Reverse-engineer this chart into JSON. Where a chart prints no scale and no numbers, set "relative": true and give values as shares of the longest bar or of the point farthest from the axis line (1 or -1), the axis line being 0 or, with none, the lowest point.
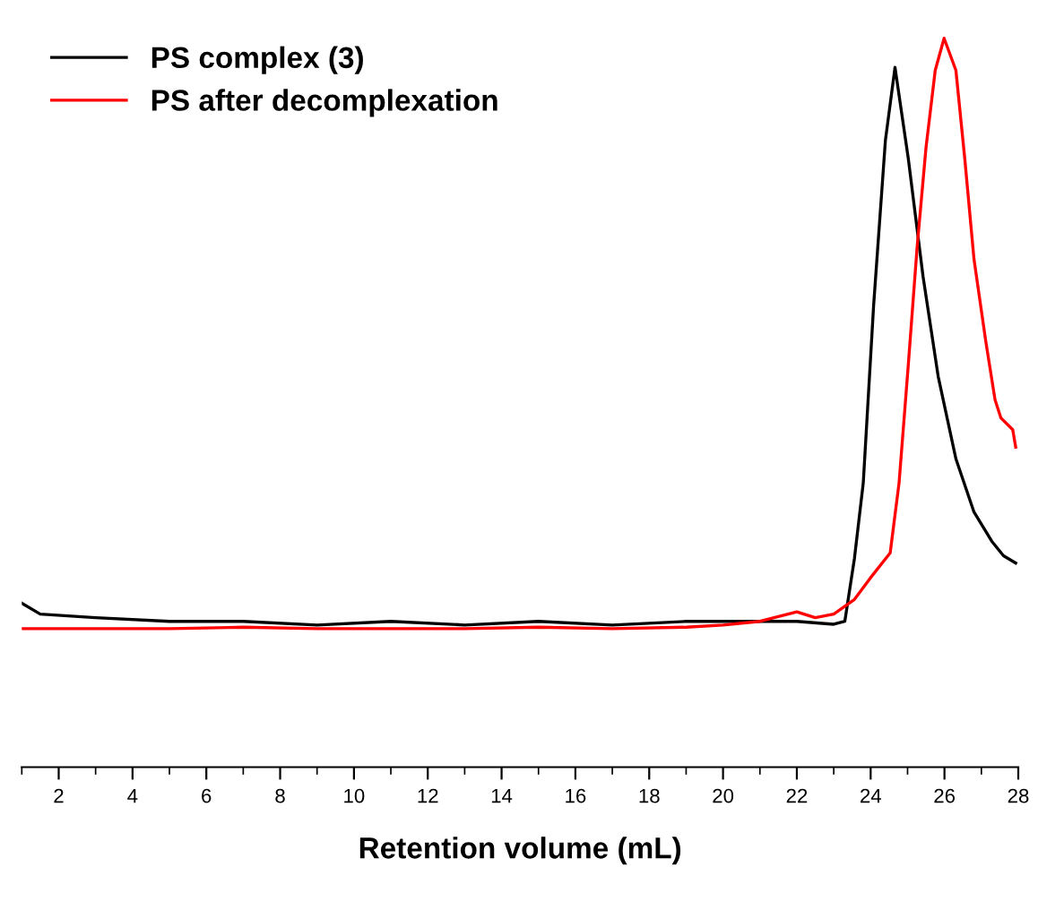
{
  "chart_data": {
    "type": "line",
    "relative": true,
    "xlabel": "Retention volume (mL)",
    "xlim": [
      1,
      28
    ],
    "xticks": [
      2,
      4,
      6,
      8,
      10,
      12,
      14,
      16,
      18,
      20,
      22,
      24,
      26,
      28
    ],
    "tick_labels": "x",
    "grid": false,
    "legend": "top left",
    "marker": "none",
    "line_style": "solid",
    "series": [
      {
        "name": "PS complex (3)",
        "color": "#000000",
        "x": [
          1,
          1.5,
          3,
          5,
          7,
          9,
          11,
          13,
          15,
          17,
          19,
          21,
          22,
          23,
          23.3,
          23.56,
          23.8,
          24.08,
          24.4,
          24.66,
          25.02,
          25.42,
          25.83,
          26.31,
          26.8,
          27.28,
          27.6,
          27.93
        ],
        "values": [
          0.225,
          0.21,
          0.205,
          0.2,
          0.2,
          0.195,
          0.2,
          0.195,
          0.2,
          0.195,
          0.2,
          0.2,
          0.2,
          0.196,
          0.2,
          0.286,
          0.39,
          0.633,
          0.86,
          0.96,
          0.835,
          0.673,
          0.536,
          0.423,
          0.35,
          0.31,
          0.29,
          0.28
        ]
      },
      {
        "name": "PS after decomplexation",
        "color": "#ff0000",
        "x": [
          1,
          3,
          5,
          7,
          9,
          11,
          13,
          15,
          17,
          19,
          20,
          21,
          22,
          22.5,
          23,
          23.56,
          24,
          24.53,
          24.77,
          25.02,
          25.26,
          25.5,
          25.75,
          25.99,
          26.31,
          26.55,
          26.8,
          27.12,
          27.37,
          27.53,
          27.85,
          27.93
        ],
        "values": [
          0.19,
          0.19,
          0.19,
          0.192,
          0.19,
          0.19,
          0.19,
          0.192,
          0.19,
          0.192,
          0.195,
          0.2,
          0.213,
          0.205,
          0.21,
          0.23,
          0.26,
          0.294,
          0.39,
          0.552,
          0.714,
          0.85,
          0.956,
          1.0,
          0.956,
          0.835,
          0.697,
          0.584,
          0.504,
          0.479,
          0.463,
          0.439
        ]
      }
    ]
  }
}
